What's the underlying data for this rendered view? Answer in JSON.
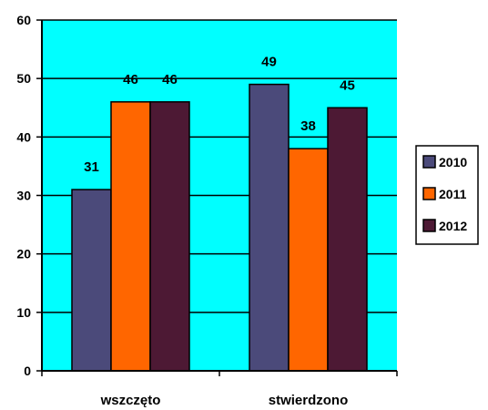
{
  "chart_data": {
    "type": "bar",
    "categories": [
      "wszczęto",
      "stwierdzono"
    ],
    "series": [
      {
        "name": "2010",
        "values": [
          31,
          49
        ],
        "color": "#4b4a7a"
      },
      {
        "name": "2011",
        "values": [
          46,
          38
        ],
        "color": "#ff6600"
      },
      {
        "name": "2012",
        "values": [
          46,
          45
        ],
        "color": "#4d1934"
      }
    ],
    "ylim": [
      0,
      60
    ],
    "yticks": [
      "0",
      "10",
      "20",
      "30",
      "40",
      "50",
      "60"
    ],
    "grid": true,
    "legend": "right",
    "plot_background": "#00ffff"
  }
}
